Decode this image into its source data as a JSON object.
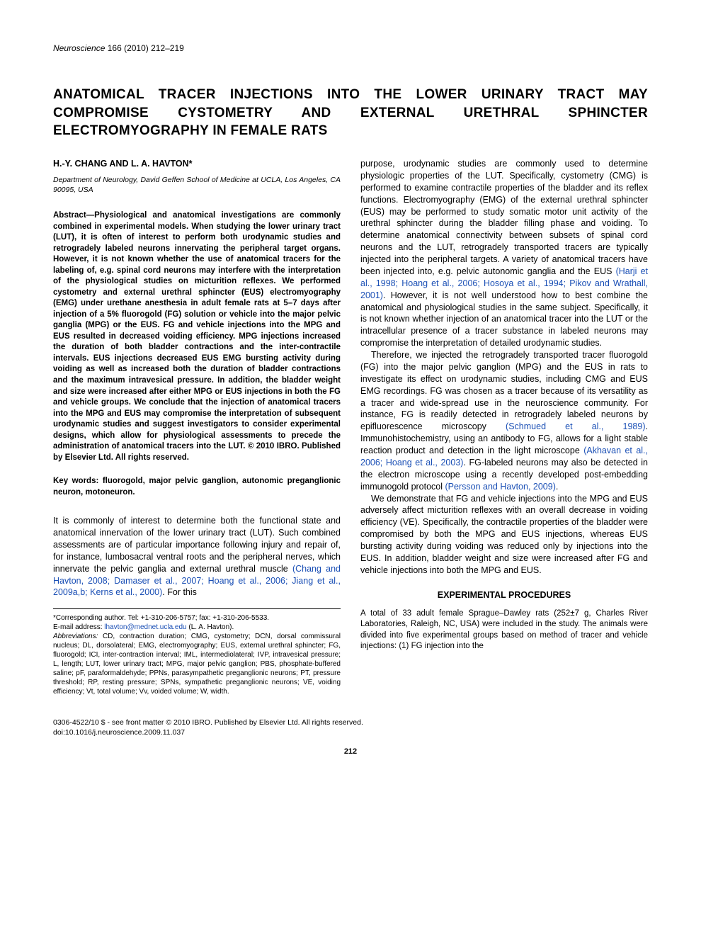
{
  "journal": {
    "name": "Neuroscience",
    "volume": "166 (2010) 212–219"
  },
  "title": "ANATOMICAL TRACER INJECTIONS INTO THE LOWER URINARY TRACT MAY COMPROMISE CYSTOMETRY AND EXTERNAL URETHRAL SPHINCTER ELECTROMYOGRAPHY IN FEMALE RATS",
  "authors": "H.-Y. CHANG AND L. A. HAVTON*",
  "affiliation": "Department of Neurology, David Geffen School of Medicine at UCLA, Los Angeles, CA 90095, USA",
  "abstract": "Abstract—Physiological and anatomical investigations are commonly combined in experimental models. When studying the lower urinary tract (LUT), it is often of interest to perform both urodynamic studies and retrogradely labeled neurons innervating the peripheral target organs. However, it is not known whether the use of anatomical tracers for the labeling of, e.g. spinal cord neurons may interfere with the interpretation of the physiological studies on micturition reflexes. We performed cystometry and external urethral sphincter (EUS) electromyography (EMG) under urethane anesthesia in adult female rats at 5–7 days after injection of a 5% fluorogold (FG) solution or vehicle into the major pelvic ganglia (MPG) or the EUS. FG and vehicle injections into the MPG and EUS resulted in decreased voiding efficiency. MPG injections increased the duration of both bladder contractions and the inter-contractile intervals. EUS injections decreased EUS EMG bursting activity during voiding as well as increased both the duration of bladder contractions and the maximum intravesical pressure. In addition, the bladder weight and size were increased after either MPG or EUS injections in both the FG and vehicle groups. We conclude that the injection of anatomical tracers into the MPG and EUS may compromise the interpretation of subsequent urodynamic studies and suggest investigators to consider experimental designs, which allow for physiological assessments to precede the administration of anatomical tracers into the LUT. © 2010 IBRO. Published by Elsevier Ltd. All rights reserved.",
  "keywords": "Key words: fluorogold, major pelvic ganglion, autonomic preganglionic neuron, motoneuron.",
  "left_body_1": "It is commonly of interest to determine both the functional state and anatomical innervation of the lower urinary tract (LUT). Such combined assessments are of particular importance following injury and repair of, for instance, lumbosacral ventral roots and the peripheral nerves, which innervate the pelvic ganglia and external urethral muscle ",
  "left_body_1_cite": "(Chang and Havton, 2008; Damaser et al., 2007; Hoang et al., 2006; Jiang et al., 2009a,b; Kerns et al., 2000)",
  "left_body_1_end": ". For this",
  "footnote_corr": "*Corresponding author. Tel: +1-310-206-5757; fax: +1-310-206-5533.",
  "footnote_email_label": "E-mail address: ",
  "footnote_email": "lhavton@mednet.ucla.edu",
  "footnote_email_tail": " (L. A. Havton).",
  "footnote_abbrev_label": "Abbreviations:",
  "footnote_abbrev": " CD, contraction duration; CMG, cystometry; DCN, dorsal commissural nucleus; DL, dorsolateral; EMG, electromyography; EUS, external urethral sphincter; FG, fluorogold; ICI, inter-contraction interval; IML, intermediolateral; IVP, intravesical pressure; L, length; LUT, lower urinary tract; MPG, major pelvic ganglion; PBS, phosphate-buffered saline; pF, paraformaldehyde; PPNs, parasympathetic preganglionic neurons; PT, pressure threshold; RP, resting pressure; SPNs, sympathetic preganglionic neurons; VE, voiding efficiency; Vt, total volume; Vv, voided volume; W, width.",
  "right_p1_a": "purpose, urodynamic studies are commonly used to determine physiologic properties of the LUT. Specifically, cystometry (CMG) is performed to examine contractile properties of the bladder and its reflex functions. Electromyography (EMG) of the external urethral sphincter (EUS) may be performed to study somatic motor unit activity of the urethral sphincter during the bladder filling phase and voiding. To determine anatomical connectivity between subsets of spinal cord neurons and the LUT, retrogradely transported tracers are typically injected into the peripheral targets. A variety of anatomical tracers have been injected into, e.g. pelvic autonomic ganglia and the EUS ",
  "right_p1_cite": "(Harji et al., 1998; Hoang et al., 2006; Hosoya et al., 1994; Pikov and Wrathall, 2001)",
  "right_p1_b": ". However, it is not well understood how to best combine the anatomical and physiological studies in the same subject. Specifically, it is not known whether injection of an anatomical tracer into the LUT or the intracellular presence of a tracer substance in labeled neurons may compromise the interpretation of detailed urodynamic studies.",
  "right_p2_a": "Therefore, we injected the retrogradely transported tracer fluorogold (FG) into the major pelvic ganglion (MPG) and the EUS in rats to investigate its effect on urodynamic studies, including CMG and EUS EMG recordings. FG was chosen as a tracer because of its versatility as a tracer and wide-spread use in the neuroscience community. For instance, FG is readily detected in retrogradely labeled neurons by epifluorescence microscopy ",
  "right_p2_cite1": "(Schmued et al., 1989)",
  "right_p2_b": ". Immunohistochemistry, using an antibody to FG, allows for a light stable reaction product and detection in the light microscope ",
  "right_p2_cite2": "(Akhavan et al., 2006; Hoang et al., 2003)",
  "right_p2_c": ". FG-labeled neurons may also be detected in the electron microscope using a recently developed post-embedding immunogold protocol ",
  "right_p2_cite3": "(Persson and Havton, 2009)",
  "right_p2_d": ".",
  "right_p3": "We demonstrate that FG and vehicle injections into the MPG and EUS adversely affect micturition reflexes with an overall decrease in voiding efficiency (VE). Specifically, the contractile properties of the bladder were compromised by both the MPG and EUS injections, whereas EUS bursting activity during voiding was reduced only by injections into the EUS. In addition, bladder weight and size were increased after FG and vehicle injections into both the MPG and EUS.",
  "section_experimental": "EXPERIMENTAL PROCEDURES",
  "right_p4": "A total of 33 adult female Sprague–Dawley rats (252±7 g, Charles River Laboratories, Raleigh, NC, USA) were included in the study. The animals were divided into five experimental groups based on method of tracer and vehicle injections: (1) FG injection into the",
  "copyright": "0306-4522/10 $ - see front matter © 2010 IBRO. Published by Elsevier Ltd. All rights reserved.",
  "doi": "doi:10.1016/j.neuroscience.2009.11.037",
  "page_number": "212",
  "colors": {
    "link": "#1a4fb5",
    "text": "#000000",
    "background": "#ffffff"
  }
}
